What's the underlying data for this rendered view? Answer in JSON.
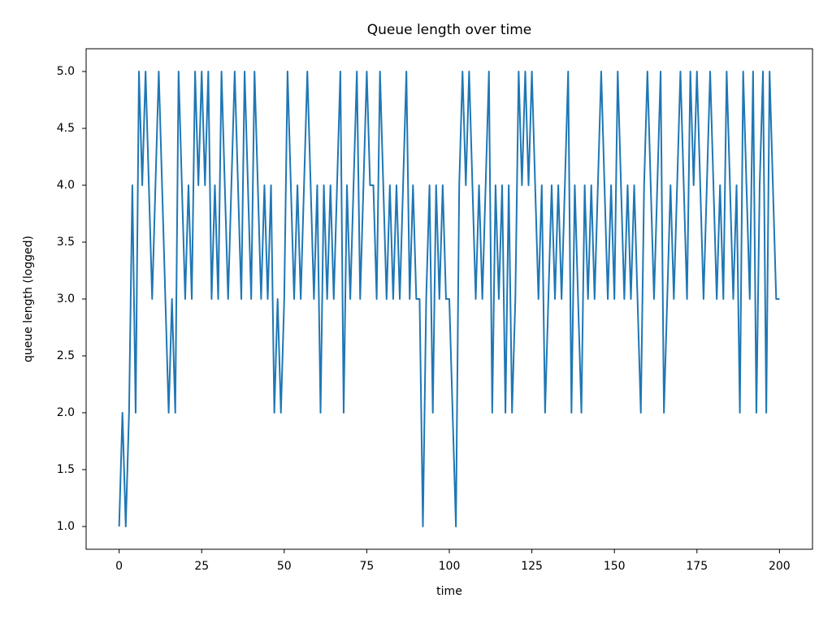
{
  "chart_data": {
    "type": "line",
    "title": "Queue length over time",
    "x_label": "time",
    "y_label": "queue length (logged)",
    "x": [
      0,
      1,
      2,
      3,
      4,
      5,
      6,
      7,
      8,
      9,
      10,
      11,
      12,
      13,
      14,
      15,
      16,
      17,
      18,
      19,
      20,
      21,
      22,
      23,
      24,
      25,
      26,
      27,
      28,
      29,
      30,
      31,
      32,
      33,
      34,
      35,
      36,
      37,
      38,
      39,
      40,
      41,
      42,
      43,
      44,
      45,
      46,
      47,
      48,
      49,
      50,
      51,
      52,
      53,
      54,
      55,
      56,
      57,
      58,
      59,
      60,
      61,
      62,
      63,
      64,
      65,
      66,
      67,
      68,
      69,
      70,
      71,
      72,
      73,
      74,
      75,
      76,
      77,
      78,
      79,
      80,
      81,
      82,
      83,
      84,
      85,
      86,
      87,
      88,
      89,
      90,
      91,
      92,
      93,
      94,
      95,
      96,
      97,
      98,
      99,
      100,
      101,
      102,
      103,
      104,
      105,
      106,
      107,
      108,
      109,
      110,
      111,
      112,
      113,
      114,
      115,
      116,
      117,
      118,
      119,
      120,
      121,
      122,
      123,
      124,
      125,
      126,
      127,
      128,
      129,
      130,
      131,
      132,
      133,
      134,
      135,
      136,
      137,
      138,
      139,
      140,
      141,
      142,
      143,
      144,
      145,
      146,
      147,
      148,
      149,
      150,
      151,
      152,
      153,
      154,
      155,
      156,
      157,
      158,
      159,
      160,
      161,
      162,
      163,
      164,
      165,
      166,
      167,
      168,
      169,
      170,
      171,
      172,
      173,
      174,
      175,
      176,
      177,
      178,
      179,
      180,
      181,
      182,
      183,
      184,
      185,
      186,
      187,
      188,
      189,
      190,
      191,
      192,
      193,
      194,
      195,
      196,
      197,
      198,
      199,
      200
    ],
    "values": [
      1,
      2,
      1,
      2,
      4,
      2,
      5,
      4,
      5,
      4,
      3,
      4,
      5,
      4,
      3,
      2,
      3,
      2,
      5,
      4,
      3,
      4,
      3,
      5,
      4,
      5,
      4,
      5,
      3,
      4,
      3,
      5,
      4,
      3,
      4,
      5,
      4,
      3,
      5,
      4,
      3,
      5,
      4,
      3,
      4,
      3,
      4,
      2,
      3,
      2,
      3,
      5,
      4,
      3,
      4,
      3,
      4,
      5,
      4,
      3,
      4,
      2,
      4,
      3,
      4,
      3,
      4,
      5,
      2,
      4,
      3,
      4,
      5,
      3,
      4,
      5,
      4,
      4,
      3,
      5,
      4,
      3,
      4,
      3,
      4,
      3,
      4,
      5,
      3,
      4,
      3,
      3,
      1,
      3,
      4,
      2,
      4,
      3,
      4,
      3,
      3,
      2,
      1,
      4,
      5,
      4,
      5,
      4,
      3,
      4,
      3,
      4,
      5,
      2,
      4,
      3,
      4,
      2,
      4,
      2,
      3,
      5,
      4,
      5,
      4,
      5,
      4,
      3,
      4,
      2,
      3,
      4,
      3,
      4,
      3,
      4,
      5,
      2,
      4,
      3,
      2,
      4,
      3,
      4,
      3,
      4,
      5,
      4,
      3,
      4,
      3,
      5,
      4,
      3,
      4,
      3,
      4,
      3,
      2,
      4,
      5,
      4,
      3,
      4,
      5,
      2,
      3,
      4,
      3,
      4,
      5,
      4,
      3,
      5,
      4,
      5,
      4,
      3,
      4,
      5,
      4,
      3,
      4,
      3,
      5,
      4,
      3,
      4,
      2,
      5,
      4,
      3,
      5,
      2,
      4,
      5,
      2,
      5,
      4,
      3,
      3
    ],
    "color": "#1f77b4",
    "xlim": [
      -10,
      210
    ],
    "xticks": [
      0,
      25,
      50,
      75,
      100,
      125,
      150,
      175,
      200
    ],
    "ylim": [
      0.8,
      5.2
    ],
    "yticks": [
      {
        "value": 1,
        "label": "1.0"
      },
      1.5,
      {
        "value": 2,
        "label": "2.0"
      },
      2.5,
      {
        "value": 3,
        "label": "3.0"
      },
      3.5,
      {
        "value": 4,
        "label": "4.0"
      },
      4.5,
      {
        "value": 5,
        "label": "5.0"
      }
    ]
  }
}
